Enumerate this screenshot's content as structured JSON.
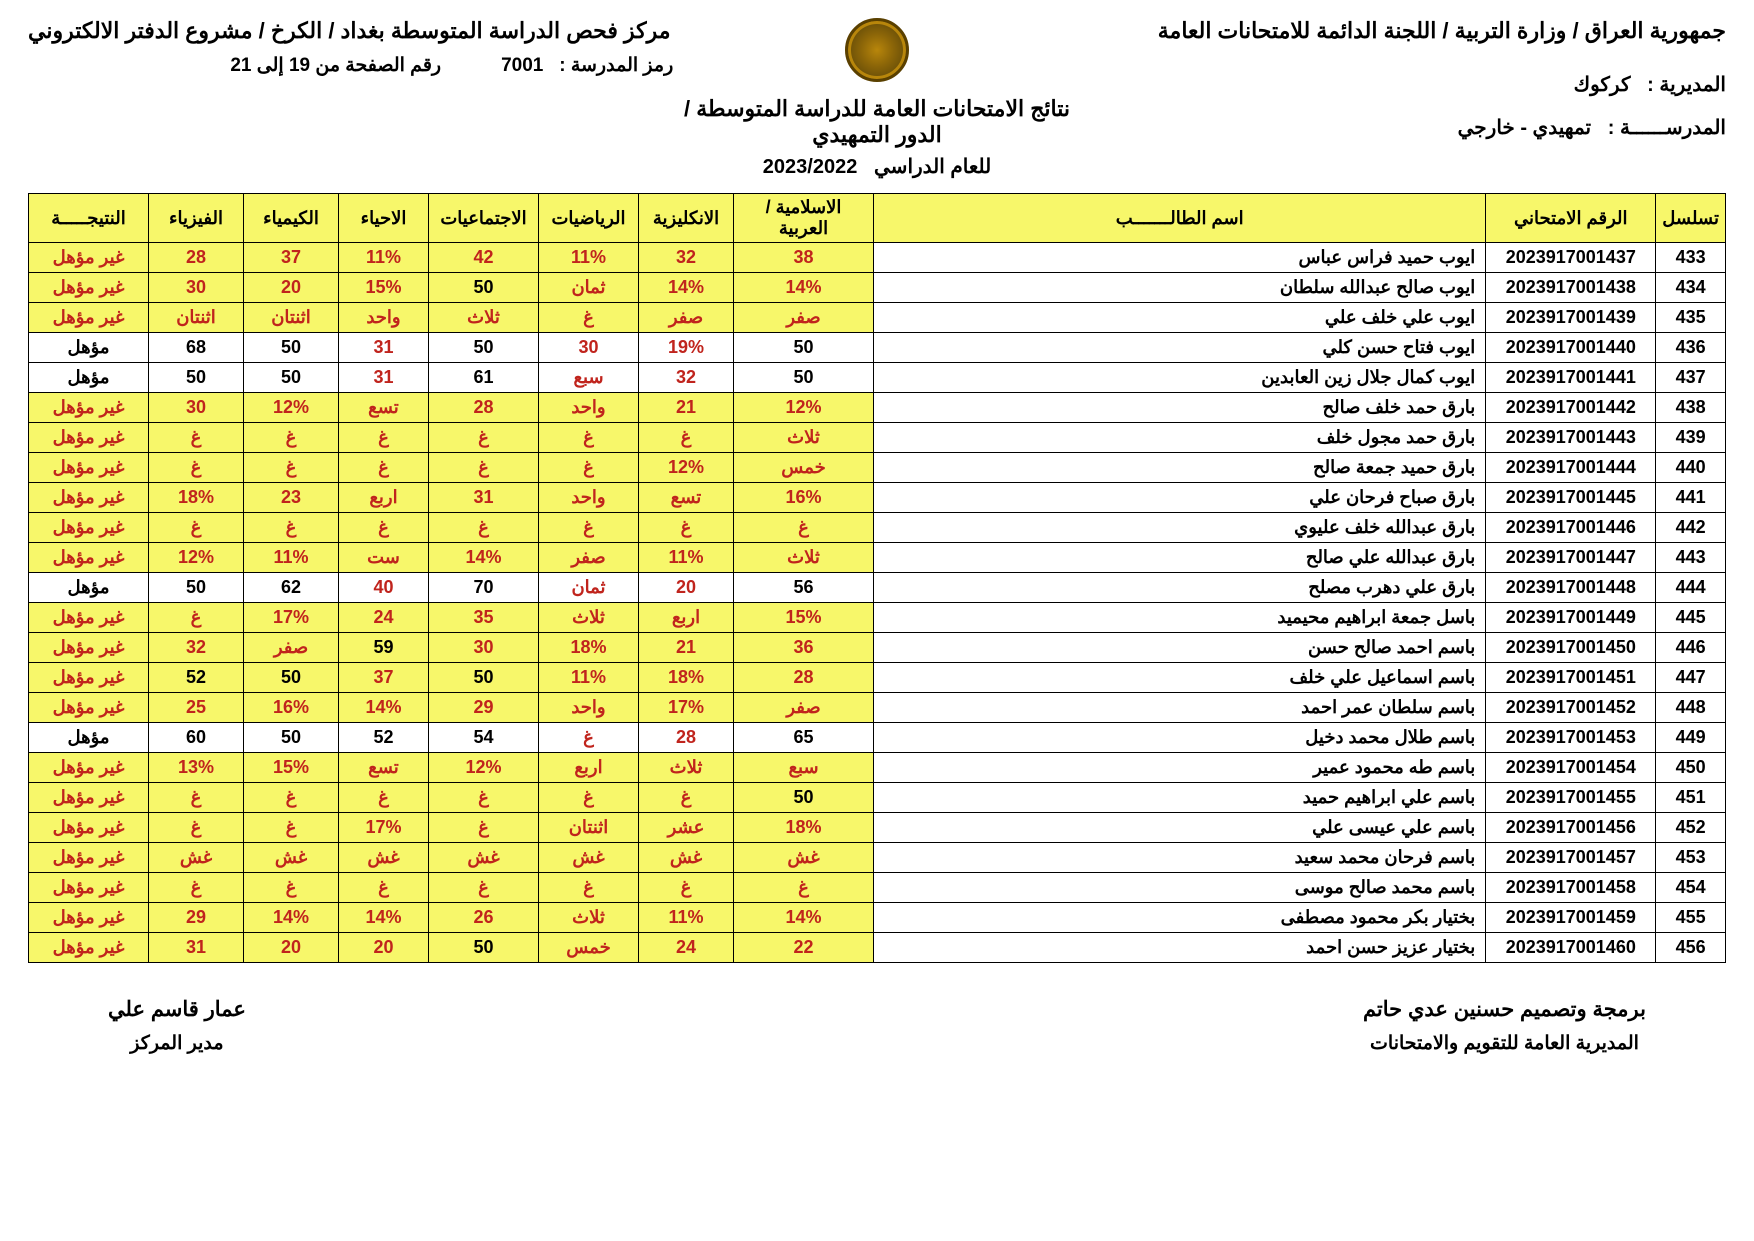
{
  "header": {
    "country_line": "جمهورية العراق / وزارة التربية / اللجنة الدائمة للامتحانات العامة",
    "center_line": "مركز فحص الدراسة المتوسطة بغداد / الكرخ / مشروع الدفتر الالكتروني",
    "school_code_label": "رمز المدرسة :",
    "school_code": "7001",
    "page_label": "رقم الصفحة من 19 إلى 21",
    "results_title": "نتائج الامتحانات العامة للدراسة المتوسطة / الدور التمهيدي",
    "year_label": "للعام الدراسي",
    "year": "2023/2022",
    "directorate_label": "المديرية :",
    "directorate": "كركوك",
    "school_label": "المدرســــــة :",
    "school": "تمهيدي - خارجي"
  },
  "columns": [
    "تسلسل",
    "الرقم الامتحاني",
    "اسم الطالـــــــب",
    "الاسلامية / العربية",
    "الانكليزية",
    "الرياضيات",
    "الاجتماعيات",
    "الاحياء",
    "الكيمياء",
    "الفيزياء",
    "النتيجـــــة"
  ],
  "rows": [
    {
      "seq": "433",
      "exam": "2023917001437",
      "name": "ايوب حميد فراس عباس",
      "c": [
        "38",
        "32",
        "11%",
        "42",
        "11%",
        "37",
        "28"
      ],
      "r": "غير مؤهل",
      "fail": true,
      "red": [
        0,
        1,
        2,
        3,
        4,
        5,
        6
      ]
    },
    {
      "seq": "434",
      "exam": "2023917001438",
      "name": "ايوب صالح عبدالله سلطان",
      "c": [
        "14%",
        "14%",
        "ثمان",
        "50",
        "15%",
        "20",
        "30"
      ],
      "r": "غير مؤهل",
      "fail": true,
      "red": [
        0,
        1,
        2,
        4,
        5,
        6
      ]
    },
    {
      "seq": "435",
      "exam": "2023917001439",
      "name": "ايوب علي خلف علي",
      "c": [
        "صفر",
        "صفر",
        "غ",
        "ثلاث",
        "واحد",
        "اثنتان",
        "اثنتان"
      ],
      "r": "غير مؤهل",
      "fail": true,
      "red": [
        0,
        1,
        2,
        3,
        4,
        5,
        6
      ]
    },
    {
      "seq": "436",
      "exam": "2023917001440",
      "name": "ايوب فتاح حسن كلي",
      "c": [
        "50",
        "19%",
        "30",
        "50",
        "31",
        "50",
        "68"
      ],
      "r": "مؤهل",
      "fail": false,
      "red": [
        1,
        2,
        4
      ]
    },
    {
      "seq": "437",
      "exam": "2023917001441",
      "name": "ايوب كمال جلال زين العابدين",
      "c": [
        "50",
        "32",
        "سبع",
        "61",
        "31",
        "50",
        "50"
      ],
      "r": "مؤهل",
      "fail": false,
      "red": [
        1,
        2,
        4
      ]
    },
    {
      "seq": "438",
      "exam": "2023917001442",
      "name": "بارق حمد خلف صالح",
      "c": [
        "12%",
        "21",
        "واحد",
        "28",
        "تسع",
        "12%",
        "30"
      ],
      "r": "غير مؤهل",
      "fail": true,
      "red": [
        0,
        1,
        2,
        3,
        4,
        5,
        6
      ]
    },
    {
      "seq": "439",
      "exam": "2023917001443",
      "name": "بارق حمد مجول خلف",
      "c": [
        "ثلاث",
        "غ",
        "غ",
        "غ",
        "غ",
        "غ",
        "غ"
      ],
      "r": "غير مؤهل",
      "fail": true,
      "red": [
        0,
        1,
        2,
        3,
        4,
        5,
        6
      ]
    },
    {
      "seq": "440",
      "exam": "2023917001444",
      "name": "بارق حميد جمعة صالح",
      "c": [
        "خمس",
        "12%",
        "غ",
        "غ",
        "غ",
        "غ",
        "غ"
      ],
      "r": "غير مؤهل",
      "fail": true,
      "red": [
        0,
        1,
        2,
        3,
        4,
        5,
        6
      ]
    },
    {
      "seq": "441",
      "exam": "2023917001445",
      "name": "بارق صباح فرحان علي",
      "c": [
        "16%",
        "تسع",
        "واحد",
        "31",
        "اربع",
        "23",
        "18%"
      ],
      "r": "غير مؤهل",
      "fail": true,
      "red": [
        0,
        1,
        2,
        3,
        4,
        5,
        6
      ]
    },
    {
      "seq": "442",
      "exam": "2023917001446",
      "name": "بارق عبدالله خلف عليوي",
      "c": [
        "غ",
        "غ",
        "غ",
        "غ",
        "غ",
        "غ",
        "غ"
      ],
      "r": "غير مؤهل",
      "fail": true,
      "red": [
        0,
        1,
        2,
        3,
        4,
        5,
        6
      ]
    },
    {
      "seq": "443",
      "exam": "2023917001447",
      "name": "بارق عبدالله علي صالح",
      "c": [
        "ثلاث",
        "11%",
        "صفر",
        "14%",
        "ست",
        "11%",
        "12%"
      ],
      "r": "غير مؤهل",
      "fail": true,
      "red": [
        0,
        1,
        2,
        3,
        4,
        5,
        6
      ]
    },
    {
      "seq": "444",
      "exam": "2023917001448",
      "name": "بارق علي دهرب مصلح",
      "c": [
        "56",
        "20",
        "ثمان",
        "70",
        "40",
        "62",
        "50"
      ],
      "r": "مؤهل",
      "fail": false,
      "red": [
        1,
        2,
        4
      ]
    },
    {
      "seq": "445",
      "exam": "2023917001449",
      "name": "باسل جمعة ابراهيم محيميد",
      "c": [
        "15%",
        "اربع",
        "ثلاث",
        "35",
        "24",
        "17%",
        "غ"
      ],
      "r": "غير مؤهل",
      "fail": true,
      "red": [
        0,
        1,
        2,
        3,
        4,
        5,
        6
      ]
    },
    {
      "seq": "446",
      "exam": "2023917001450",
      "name": "باسم احمد صالح حسن",
      "c": [
        "36",
        "21",
        "18%",
        "30",
        "59",
        "صفر",
        "32"
      ],
      "r": "غير مؤهل",
      "fail": true,
      "red": [
        0,
        1,
        2,
        3,
        5,
        6
      ]
    },
    {
      "seq": "447",
      "exam": "2023917001451",
      "name": "باسم اسماعيل علي خلف",
      "c": [
        "28",
        "18%",
        "11%",
        "50",
        "37",
        "50",
        "52"
      ],
      "r": "غير مؤهل",
      "fail": true,
      "red": [
        0,
        1,
        2,
        4
      ]
    },
    {
      "seq": "448",
      "exam": "2023917001452",
      "name": "باسم سلطان عمر احمد",
      "c": [
        "صفر",
        "17%",
        "واحد",
        "29",
        "14%",
        "16%",
        "25"
      ],
      "r": "غير مؤهل",
      "fail": true,
      "red": [
        0,
        1,
        2,
        3,
        4,
        5,
        6
      ]
    },
    {
      "seq": "449",
      "exam": "2023917001453",
      "name": "باسم طلال محمد دخيل",
      "c": [
        "65",
        "28",
        "غ",
        "54",
        "52",
        "50",
        "60"
      ],
      "r": "مؤهل",
      "fail": false,
      "red": [
        1,
        2
      ]
    },
    {
      "seq": "450",
      "exam": "2023917001454",
      "name": "باسم طه محمود عمير",
      "c": [
        "سبع",
        "ثلاث",
        "اربع",
        "12%",
        "تسع",
        "15%",
        "13%"
      ],
      "r": "غير مؤهل",
      "fail": true,
      "red": [
        0,
        1,
        2,
        3,
        4,
        5,
        6
      ]
    },
    {
      "seq": "451",
      "exam": "2023917001455",
      "name": "باسم علي ابراهيم حميد",
      "c": [
        "50",
        "غ",
        "غ",
        "غ",
        "غ",
        "غ",
        "غ"
      ],
      "r": "غير مؤهل",
      "fail": true,
      "red": [
        1,
        2,
        3,
        4,
        5,
        6
      ]
    },
    {
      "seq": "452",
      "exam": "2023917001456",
      "name": "باسم علي عيسى علي",
      "c": [
        "18%",
        "عشر",
        "اثنتان",
        "غ",
        "17%",
        "غ",
        "غ"
      ],
      "r": "غير مؤهل",
      "fail": true,
      "red": [
        0,
        1,
        2,
        3,
        4,
        5,
        6
      ]
    },
    {
      "seq": "453",
      "exam": "2023917001457",
      "name": "باسم فرحان محمد سعيد",
      "c": [
        "غش",
        "غش",
        "غش",
        "غش",
        "غش",
        "غش",
        "غش"
      ],
      "r": "غير مؤهل",
      "fail": true,
      "red": [
        0,
        1,
        2,
        3,
        4,
        5,
        6
      ]
    },
    {
      "seq": "454",
      "exam": "2023917001458",
      "name": "باسم محمد صالح موسى",
      "c": [
        "غ",
        "غ",
        "غ",
        "غ",
        "غ",
        "غ",
        "غ"
      ],
      "r": "غير مؤهل",
      "fail": true,
      "red": [
        0,
        1,
        2,
        3,
        4,
        5,
        6
      ]
    },
    {
      "seq": "455",
      "exam": "2023917001459",
      "name": "بختيار بكر محمود مصطفى",
      "c": [
        "14%",
        "11%",
        "ثلاث",
        "26",
        "14%",
        "14%",
        "29"
      ],
      "r": "غير مؤهل",
      "fail": true,
      "red": [
        0,
        1,
        2,
        3,
        4,
        5,
        6
      ]
    },
    {
      "seq": "456",
      "exam": "2023917001460",
      "name": "بختيار عزيز حسن احمد",
      "c": [
        "22",
        "24",
        "خمس",
        "50",
        "20",
        "20",
        "31"
      ],
      "r": "غير مؤهل",
      "fail": true,
      "red": [
        0,
        1,
        2,
        4,
        5,
        6
      ]
    }
  ],
  "col_widths": [
    "55px",
    "170px",
    "auto",
    "140px",
    "95px",
    "100px",
    "110px",
    "90px",
    "95px",
    "95px",
    "120px"
  ],
  "footer": {
    "designer": "برمجة وتصميم حسنين عدي حاتم",
    "designer_sub": "المديرية العامة للتقويم والامتحانات",
    "manager": "عمار قاسم علي",
    "manager_sub": "مدير المركز"
  },
  "colors": {
    "header_bg": "#f7f76a",
    "fail_bg": "#f7f76a",
    "red": "#c0241d"
  }
}
